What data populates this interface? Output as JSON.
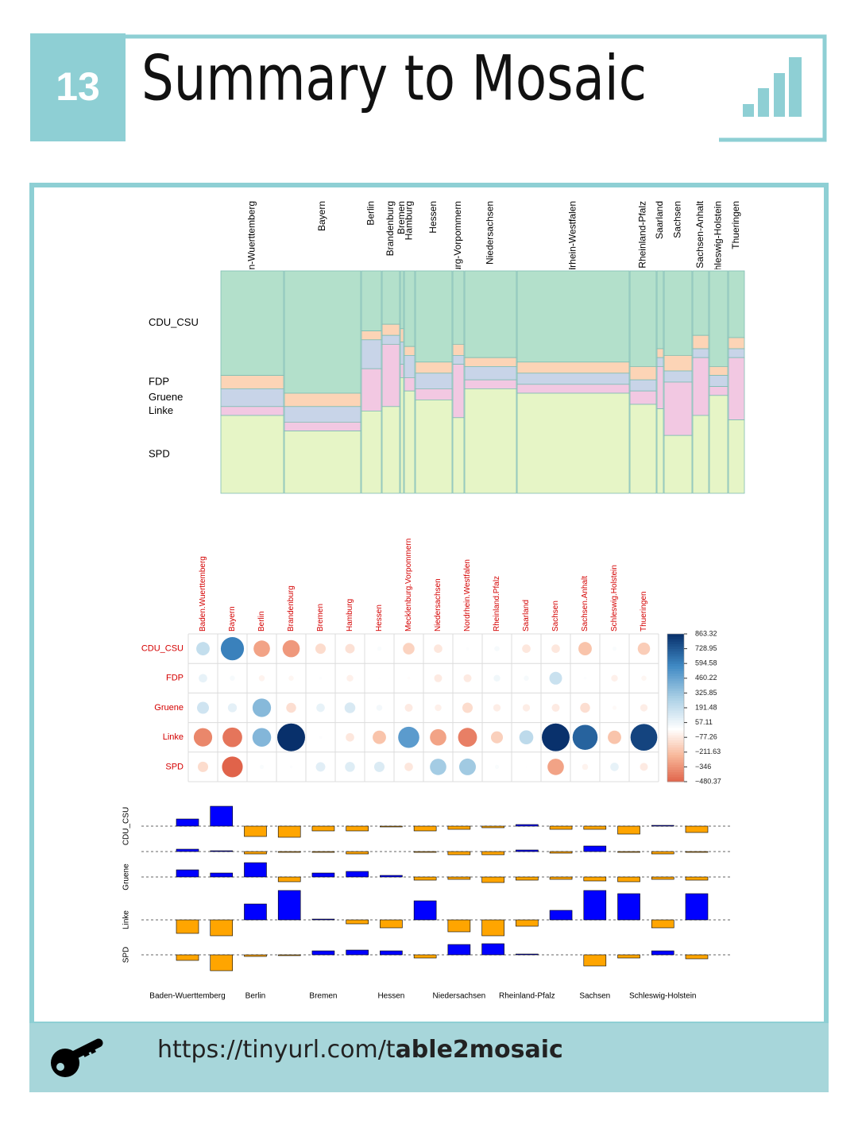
{
  "header": {
    "number": "13",
    "title": "Summary to Mosaic"
  },
  "footer": {
    "url_plain": "https://tinyurl.com/t",
    "url_bold": "able2mosaic"
  },
  "chart_data": [
    {
      "type": "mosaic",
      "categories": [
        "Baden-Wuerttemberg",
        "Bayern",
        "Berlin",
        "Brandenburg",
        "Bremen",
        "Hamburg",
        "Hessen",
        "Mecklenburg-Vorpommern",
        "Niedersachsen",
        "Nordrhein-Westfalen",
        "Rheinland-Pfalz",
        "Saarland",
        "Sachsen",
        "Sachsen-Anhalt",
        "Schleswig-Holstein",
        "Thueringen"
      ],
      "column_shares": [
        79,
        96,
        25,
        22,
        4,
        13,
        46,
        14,
        65,
        141,
        33,
        8,
        35,
        20,
        23,
        20
      ],
      "series": [
        {
          "name": "CDU_CSU",
          "color": "#b3e0cb",
          "values": [
            47,
            55,
            27,
            24,
            26,
            34,
            41,
            33,
            39,
            41,
            43,
            35,
            38,
            29,
            43,
            30
          ]
        },
        {
          "name": "FDP",
          "color": "#fcd4b6",
          "values": [
            6,
            6,
            4,
            5,
            6,
            4,
            5,
            5,
            4,
            5,
            6,
            4,
            7,
            6,
            4,
            5
          ]
        },
        {
          "name": "Gruene",
          "color": "#c8d4e8",
          "values": [
            8,
            7,
            13,
            4,
            10,
            10,
            7,
            4,
            6,
            5,
            5,
            4,
            5,
            4,
            5,
            4
          ]
        },
        {
          "name": "Linke",
          "color": "#f2c8e2",
          "values": [
            4,
            4,
            19,
            28,
            6,
            6,
            5,
            24,
            4,
            4,
            6,
            19,
            24,
            26,
            4,
            28
          ]
        },
        {
          "name": "SPD",
          "color": "#e6f5c6",
          "values": [
            35,
            28,
            37,
            39,
            52,
            46,
            42,
            34,
            47,
            45,
            40,
            38,
            26,
            35,
            44,
            33
          ]
        }
      ]
    },
    {
      "type": "corrplot",
      "categories": [
        "Baden.Wuerttemberg",
        "Bayern",
        "Berlin",
        "Brandenburg",
        "Bremen",
        "Hamburg",
        "Hessen",
        "Mecklenburg.Vorpommern",
        "Niedersachsen",
        "Nordrhein.Westfalen",
        "Rheinland.Pfalz",
        "Saarland",
        "Sachsen",
        "Sachsen.Anhalt",
        "Schleswig.Holstein",
        "Thueringen"
      ],
      "label_color": "#d40000",
      "colors": {
        "negative": [
          "#ffffff",
          "#f8b89a",
          "#e0634a"
        ],
        "positive": [
          "#ffffff",
          "#a9cfe5",
          "#3f89c4",
          "#08306b"
        ]
      },
      "colorlim": [
        -480.37,
        863.32
      ],
      "colorticks": [
        863.32,
        728.95,
        594.58,
        460.22,
        325.85,
        191.48,
        57.11,
        {
          "value": -77.26,
          "label": "−77.26"
        },
        {
          "value": -211.63,
          "label": "−211.63"
        },
        {
          "value": -346,
          "label": "−346"
        },
        {
          "value": -480.37,
          "label": "−480.37"
        }
      ],
      "series": [
        {
          "name": "CDU_CSU",
          "values": [
            200,
            600,
            -300,
            -330,
            -120,
            -100,
            20,
            -150,
            -80,
            10,
            30,
            -80,
            -80,
            -200,
            20,
            -170
          ]
        },
        {
          "name": "FDP",
          "values": [
            80,
            30,
            -40,
            -30,
            10,
            -50,
            5,
            -10,
            -70,
            -70,
            50,
            30,
            180,
            10,
            -50,
            -30
          ]
        },
        {
          "name": "Gruene",
          "values": [
            160,
            90,
            380,
            -110,
            80,
            130,
            40,
            -70,
            -50,
            -120,
            -60,
            -60,
            -70,
            -110,
            -20,
            -60
          ]
        },
        {
          "name": "Linke",
          "values": [
            -380,
            -430,
            390,
            863.32,
            10,
            -80,
            -200,
            500,
            -300,
            -400,
            -160,
            220,
            860,
            700,
            -200,
            800
          ]
        },
        {
          "name": "SPD",
          "values": [
            -120,
            -480.37,
            20,
            10,
            100,
            110,
            120,
            -80,
            300,
            310,
            20,
            5,
            -300,
            -40,
            80,
            -70
          ]
        }
      ]
    },
    {
      "type": "assoc",
      "categories": [
        "Baden-Wuerttemberg",
        null,
        "Berlin",
        null,
        "Bremen",
        null,
        "Hessen",
        null,
        "Niedersachsen",
        null,
        "Rheinland-Pfalz",
        null,
        "Sachsen",
        null,
        "Schleswig-Holstein",
        null
      ],
      "colors": {
        "positive": "#0000ff",
        "negative": "#ffa500"
      },
      "series": [
        {
          "name": "CDU_CSU",
          "values": [
            9,
            25,
            -13,
            -14,
            -6,
            -6,
            -1,
            -6,
            -4,
            -2,
            2,
            -4,
            -4,
            -10,
            1,
            -8
          ]
        },
        {
          "name": null,
          "values": [
            3,
            1,
            -3,
            -1,
            -1,
            -3,
            0,
            -1,
            -4,
            -4,
            2,
            -2,
            7,
            -1,
            -3,
            -1
          ]
        },
        {
          "name": "Gruene",
          "values": [
            9,
            5,
            18,
            -6,
            5,
            7,
            2,
            -4,
            -3,
            -7,
            -4,
            -3,
            -5,
            -6,
            -3,
            -4
          ]
        },
        {
          "name": "Linke",
          "values": [
            -17,
            -20,
            20,
            37,
            1,
            -5,
            -10,
            24,
            -15,
            -20,
            -8,
            12,
            37,
            33,
            -10,
            33
          ]
        },
        {
          "name": "SPD",
          "values": [
            -7,
            -20,
            -2,
            -1,
            5,
            6,
            5,
            -4,
            13,
            14,
            1,
            0,
            -14,
            -4,
            5,
            -5
          ]
        }
      ]
    }
  ]
}
